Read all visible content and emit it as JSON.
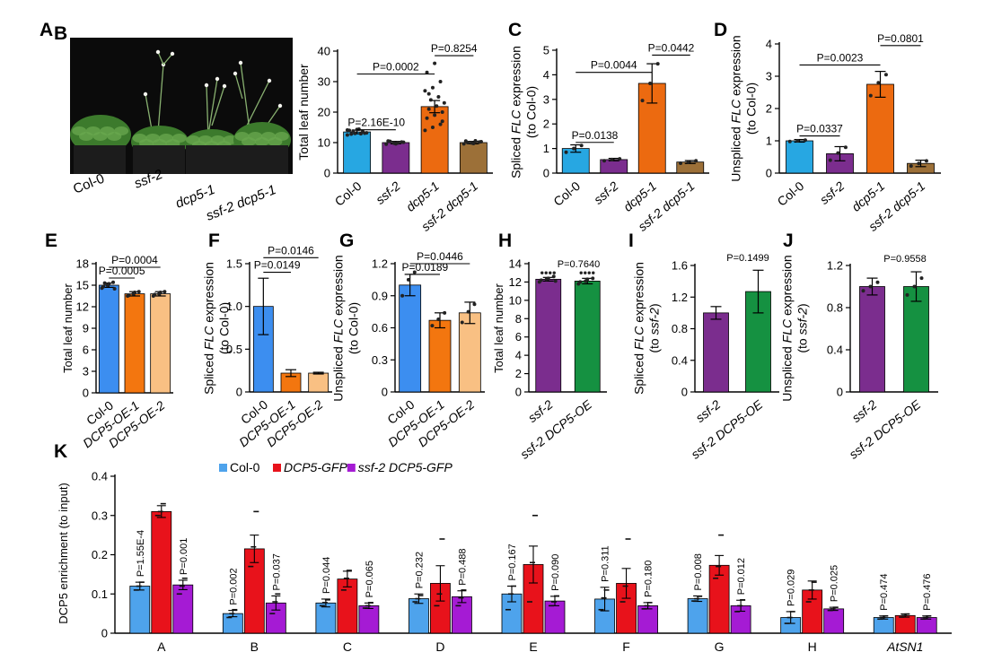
{
  "photo": {
    "letter": "A",
    "labels": [
      "Col-0",
      "ssf-2",
      "dcp5-1",
      "ssf-2 dcp5-1"
    ],
    "colors": {
      "background": "#0a0a0a",
      "leaf": "#3c7a2c",
      "leaf_light": "#6aa84f",
      "pot": "#1c1c1c",
      "stem": "#88b070",
      "flower": "#f4f4ee"
    }
  },
  "chart_data": [
    {
      "id": "B",
      "type": "bar",
      "letter": "B",
      "categories": [
        "Col-0",
        "ssf-2",
        "dcp5-1",
        "ssf-2 dcp5-1"
      ],
      "italic": [
        false,
        true,
        true,
        true
      ],
      "values": [
        13.5,
        10.0,
        21.8,
        10.0
      ],
      "errors": [
        0.6,
        0.4,
        2.0,
        0.4
      ],
      "colors": [
        "#27a7e2",
        "#7b2d8e",
        "#ec6a10",
        "#9c7038"
      ],
      "ylabel": [
        {
          "t": "Total leaf number"
        }
      ],
      "ylim": [
        0,
        40
      ],
      "yticks": [
        0,
        10,
        20,
        30,
        40
      ],
      "ytick_labels": [
        "0",
        "10",
        "20",
        "30",
        "40"
      ],
      "points": [
        [
          12.5,
          13,
          13.6,
          14,
          14.3,
          13.1,
          12.8,
          14.4,
          13.2,
          13.8,
          12.9,
          14.1
        ],
        [
          9.5,
          9.8,
          10.2,
          10.5,
          9.6,
          10.1,
          10.4,
          9.9
        ],
        [
          14,
          15,
          16,
          18,
          19,
          20,
          21,
          22,
          23,
          24,
          25,
          27,
          28,
          30,
          33,
          36,
          17,
          26
        ],
        [
          9.6,
          9.9,
          10.2,
          10.5,
          9.7,
          10.3,
          10.0,
          10.6
        ]
      ],
      "brackets": [
        {
          "from": 0,
          "to": 1,
          "y": 14.2,
          "label": "P=2.16E-10"
        },
        {
          "from": 0,
          "to": 2,
          "y": 32.5,
          "label": "P=0.0002"
        },
        {
          "from": 2,
          "to": 3,
          "y": 38.5,
          "label": "P=0.8254"
        }
      ]
    },
    {
      "id": "C",
      "type": "bar",
      "letter": "C",
      "categories": [
        "Col-0",
        "ssf-2",
        "dcp5-1",
        "ssf-2 dcp5-1"
      ],
      "italic": [
        false,
        true,
        true,
        true
      ],
      "values": [
        1.0,
        0.55,
        3.65,
        0.45
      ],
      "errors": [
        0.15,
        0.05,
        0.8,
        0.06
      ],
      "colors": [
        "#27a7e2",
        "#7b2d8e",
        "#ec6a10",
        "#9c7038"
      ],
      "ylabel": [
        {
          "t": "Spliced "
        },
        {
          "t": "FLC",
          "i": true
        },
        {
          "t": " expression"
        },
        {
          "br": true
        },
        {
          "t": "(to Col-0)"
        }
      ],
      "ylim": [
        0,
        5
      ],
      "yticks": [
        0,
        1,
        2,
        3,
        4,
        5
      ],
      "ytick_labels": [
        "0",
        "1",
        "2",
        "3",
        "4",
        "5"
      ],
      "points": [
        [
          0.85,
          1.0,
          1.12
        ],
        [
          0.5,
          0.55,
          0.58
        ],
        [
          2.95,
          3.65,
          4.45
        ],
        [
          0.4,
          0.45,
          0.5
        ]
      ],
      "brackets": [
        {
          "from": 0,
          "to": 1,
          "y": 1.25,
          "label": "P=0.0138"
        },
        {
          "from": 0,
          "to": 2,
          "y": 4.1,
          "label": "P=0.0044"
        },
        {
          "from": 2,
          "to": 3,
          "y": 4.8,
          "label": "P=0.0442"
        }
      ]
    },
    {
      "id": "D",
      "type": "bar",
      "letter": "D",
      "categories": [
        "Col-0",
        "ssf-2",
        "dcp5-1",
        "ssf-2 dcp5-1"
      ],
      "italic": [
        false,
        true,
        true,
        true
      ],
      "values": [
        1.0,
        0.6,
        2.75,
        0.3
      ],
      "errors": [
        0.04,
        0.22,
        0.4,
        0.1
      ],
      "colors": [
        "#27a7e2",
        "#7b2d8e",
        "#ec6a10",
        "#9c7038"
      ],
      "ylabel": [
        {
          "t": "Unspliced "
        },
        {
          "t": "FLC",
          "i": true
        },
        {
          "t": " expression"
        },
        {
          "br": true
        },
        {
          "t": "(to Col-0)"
        }
      ],
      "ylim": [
        0,
        4
      ],
      "yticks": [
        0,
        1,
        2,
        3,
        4
      ],
      "ytick_labels": [
        "0",
        "1",
        "2",
        "3",
        "4"
      ],
      "points": [
        [
          0.98,
          1.0,
          1.02
        ],
        [
          0.4,
          0.62,
          0.8
        ],
        [
          2.4,
          2.8,
          3.05
        ],
        [
          0.22,
          0.3,
          0.38
        ]
      ],
      "brackets": [
        {
          "from": 0,
          "to": 1,
          "y": 1.15,
          "label": "P=0.0337"
        },
        {
          "from": 0,
          "to": 2,
          "y": 3.35,
          "label": "P=0.0023"
        },
        {
          "from": 2,
          "to": 3,
          "y": 3.95,
          "label": "P=0.0801"
        }
      ]
    },
    {
      "id": "E",
      "type": "bar",
      "letter": "E",
      "categories": [
        "Col-0",
        "DCP5-OE-1",
        "DCP5-OE-2"
      ],
      "italic": [
        false,
        true,
        true
      ],
      "values": [
        15.0,
        13.8,
        13.8
      ],
      "errors": [
        0.3,
        0.3,
        0.3
      ],
      "colors": [
        "#3c8ef0",
        "#f3760f",
        "#f9c083"
      ],
      "ylabel": [
        {
          "t": "Total leaf number"
        }
      ],
      "ylim": [
        0,
        18
      ],
      "yticks": [
        0,
        3,
        6,
        9,
        12,
        15,
        18
      ],
      "ytick_labels": [
        "0",
        "3",
        "6",
        "9",
        "12",
        "15",
        "18"
      ],
      "points": [
        [
          14.6,
          15.0,
          15.4,
          14.8,
          15.2,
          14.5,
          15.3
        ],
        [
          13.5,
          13.8,
          14.1,
          13.6,
          14.0
        ],
        [
          13.5,
          13.8,
          14.1,
          13.7,
          14.0
        ]
      ],
      "brackets": [
        {
          "from": 0,
          "to": 1,
          "y": 16.0,
          "label": "P=0.0005"
        },
        {
          "from": 0,
          "to": 2,
          "y": 17.5,
          "label": "P=0.0004"
        }
      ]
    },
    {
      "id": "F",
      "type": "bar",
      "letter": "F",
      "categories": [
        "Col-0",
        "DCP5-OE-1",
        "DCP5-OE-2"
      ],
      "italic": [
        false,
        true,
        true
      ],
      "values": [
        1.0,
        0.22,
        0.22
      ],
      "errors": [
        0.33,
        0.04,
        0.01
      ],
      "colors": [
        "#3c8ef0",
        "#f3760f",
        "#f9c083"
      ],
      "ylabel": [
        {
          "t": "Spliced "
        },
        {
          "t": "FLC",
          "i": true
        },
        {
          "t": " expression"
        },
        {
          "br": true
        },
        {
          "t": "(to Col-0)"
        }
      ],
      "ylim": [
        0,
        1.5
      ],
      "yticks": [
        0,
        0.5,
        1.0,
        1.5
      ],
      "ytick_labels": [
        "0",
        "0.5",
        "1.0",
        "1.5"
      ],
      "points": [
        [],
        [],
        []
      ],
      "brackets": [
        {
          "from": 0,
          "to": 1,
          "y": 1.4,
          "label": "P=0.0149"
        },
        {
          "from": 0,
          "to": 2,
          "y": 1.57,
          "label": "P=0.0146"
        }
      ]
    },
    {
      "id": "G",
      "type": "bar",
      "letter": "G",
      "categories": [
        "Col-0",
        "DCP5-OE-1",
        "DCP5-OE-2"
      ],
      "italic": [
        false,
        true,
        true
      ],
      "values": [
        1.0,
        0.67,
        0.74
      ],
      "errors": [
        0.1,
        0.07,
        0.1
      ],
      "colors": [
        "#3c8ef0",
        "#f3760f",
        "#f9c083"
      ],
      "ylabel": [
        {
          "t": "Unspliced "
        },
        {
          "t": "FLC",
          "i": true
        },
        {
          "t": " expression"
        },
        {
          "br": true
        },
        {
          "t": "(to Col-0)"
        }
      ],
      "ylim": [
        0,
        1.2
      ],
      "yticks": [
        0,
        0.3,
        0.6,
        0.9,
        1.2
      ],
      "ytick_labels": [
        "0",
        "0.3",
        "0.6",
        "0.9",
        "1.2"
      ],
      "points": [
        [
          0.9,
          1.05,
          1.12
        ],
        [
          0.62,
          0.68,
          0.74
        ],
        [
          0.65,
          0.75,
          0.82
        ]
      ],
      "brackets": [
        {
          "from": 0,
          "to": 1,
          "y": 1.1,
          "label": "P=0.0189"
        },
        {
          "from": 0,
          "to": 2,
          "y": 1.2,
          "label": "P=0.0446"
        }
      ]
    },
    {
      "id": "H",
      "type": "bar",
      "letter": "H",
      "categories": [
        "ssf-2",
        "ssf-2 DCP5-OE"
      ],
      "italic": [
        true,
        true
      ],
      "values": [
        12.3,
        12.1
      ],
      "errors": [
        0.2,
        0.3
      ],
      "colors": [
        "#7b2d8e",
        "#159141"
      ],
      "ylabel": [
        {
          "t": "Total leaf number"
        }
      ],
      "ylim": [
        0,
        14
      ],
      "yticks": [
        0,
        2,
        4,
        6,
        8,
        10,
        12,
        14
      ],
      "ytick_labels": [
        "0",
        "2",
        "4",
        "6",
        "8",
        "10",
        "12",
        "14"
      ],
      "points": [
        [
          12.0,
          12.3,
          12.6,
          12.2,
          12.4,
          12.1
        ],
        [
          11.8,
          12.1,
          12.4,
          12.0,
          12.3
        ]
      ],
      "top_pvalue": {
        "label": "P=0.7640",
        "y": 13.3
      },
      "extra_marks": [
        [
          13.0,
          13.0,
          13.0,
          13.0
        ],
        [
          13.0,
          13.0,
          13.0,
          13.0
        ]
      ]
    },
    {
      "id": "I",
      "type": "bar",
      "letter": "I",
      "categories": [
        "ssf-2",
        "ssf-2 DCP5-OE"
      ],
      "italic": [
        true,
        true
      ],
      "values": [
        1.0,
        1.27
      ],
      "errors": [
        0.08,
        0.27
      ],
      "colors": [
        "#7b2d8e",
        "#159141"
      ],
      "ylabel": [
        {
          "t": "Spliced "
        },
        {
          "t": "FLC",
          "i": true
        },
        {
          "t": " expression"
        },
        {
          "br": true
        },
        {
          "t": "(to "
        },
        {
          "t": "ssf-2",
          "i": true
        },
        {
          "t": ")"
        }
      ],
      "ylim": [
        0,
        1.6
      ],
      "yticks": [
        0,
        0.4,
        0.8,
        1.2,
        1.6
      ],
      "ytick_labels": [
        "0",
        "0.4",
        "0.8",
        "1.2",
        "1.6"
      ],
      "points": [
        [],
        []
      ],
      "top_pvalue": {
        "label": "P=0.1499",
        "y": 1.62
      }
    },
    {
      "id": "J",
      "type": "bar",
      "letter": "J",
      "categories": [
        "ssf-2",
        "ssf-2 DCP5-OE"
      ],
      "italic": [
        true,
        true
      ],
      "values": [
        1.0,
        1.0
      ],
      "errors": [
        0.08,
        0.14
      ],
      "colors": [
        "#7b2d8e",
        "#159141"
      ],
      "ylabel": [
        {
          "t": "Unspliced "
        },
        {
          "t": "FLC",
          "i": true
        },
        {
          "t": " expression"
        },
        {
          "br": true
        },
        {
          "t": "(to "
        },
        {
          "t": "ssf-2",
          "i": true
        },
        {
          "t": ")"
        }
      ],
      "ylim": [
        0,
        1.2
      ],
      "yticks": [
        0,
        0.4,
        0.8,
        1.2
      ],
      "ytick_labels": [
        "0",
        "0.4",
        "0.8",
        "1.2"
      ],
      "points": [
        [
          0.96,
          1.0,
          1.04
        ],
        [
          0.92,
          1.0,
          1.08
        ]
      ],
      "top_pvalue": {
        "label": "P=0.9558",
        "y": 1.21
      }
    },
    {
      "id": "K",
      "type": "bar",
      "letter": "K",
      "categories": [
        "A",
        "B",
        "C",
        "D",
        "E",
        "F",
        "G",
        "H",
        "AtSN1"
      ],
      "italic": [
        false,
        false,
        false,
        false,
        false,
        false,
        false,
        false,
        true
      ],
      "series": [
        {
          "name": "Col-0",
          "italic": false,
          "color": "#4ea3ec",
          "values": [
            0.12,
            0.05,
            0.077,
            0.088,
            0.1,
            0.087,
            0.088,
            0.04,
            0.04
          ],
          "errors": [
            0.01,
            0.008,
            0.01,
            0.012,
            0.02,
            0.03,
            0.007,
            0.015,
            0.004
          ],
          "points": [
            [
              0.11,
              0.12,
              0.13
            ],
            [
              0.04,
              0.05,
              0.06
            ],
            [
              0.07,
              0.078,
              0.085
            ],
            [
              0.08,
              0.088,
              0.096
            ],
            [
              0.06,
              0.1,
              0.12
            ],
            [
              0.06,
              0.09,
              0.11
            ],
            [
              0.082,
              0.088,
              0.094
            ],
            [
              0.025,
              0.04,
              0.055
            ],
            [
              0.036,
              0.04,
              0.044
            ]
          ]
        },
        {
          "name": "DCP5-GFP",
          "italic": true,
          "color": "#e8121b",
          "values": [
            0.31,
            0.215,
            0.138,
            0.127,
            0.175,
            0.127,
            0.173,
            0.11,
            0.045
          ],
          "errors": [
            0.015,
            0.035,
            0.02,
            0.045,
            0.047,
            0.038,
            0.025,
            0.023,
            0.004
          ],
          "points": [
            [
              0.3,
              0.31,
              0.33
            ],
            [
              0.17,
              0.22,
              0.31
            ],
            [
              0.11,
              0.14,
              0.16
            ],
            [
              0.07,
              0.1,
              0.24
            ],
            [
              0.08,
              0.18,
              0.3
            ],
            [
              0.08,
              0.12,
              0.24
            ],
            [
              0.14,
              0.17,
              0.25
            ],
            [
              0.08,
              0.11,
              0.13
            ],
            [
              0.041,
              0.045,
              0.049
            ]
          ]
        },
        {
          "name": "ssf-2 DCP5-GFP",
          "italic": true,
          "color": "#a51bd4",
          "values": [
            0.123,
            0.077,
            0.07,
            0.093,
            0.082,
            0.07,
            0.07,
            0.062,
            0.04
          ],
          "errors": [
            0.012,
            0.018,
            0.007,
            0.015,
            0.012,
            0.008,
            0.014,
            0.004,
            0.004
          ],
          "points": [
            [
              0.1,
              0.12,
              0.14
            ],
            [
              0.05,
              0.08,
              0.1
            ],
            [
              0.064,
              0.07,
              0.078
            ],
            [
              0.07,
              0.09,
              0.11
            ],
            [
              0.07,
              0.08,
              0.095
            ],
            [
              0.062,
              0.07,
              0.078
            ],
            [
              0.055,
              0.07,
              0.085
            ],
            [
              0.058,
              0.062,
              0.066
            ],
            [
              0.036,
              0.04,
              0.044
            ]
          ]
        }
      ],
      "pvalues": [
        [
          "P=1.55E-4",
          "P=0.001"
        ],
        [
          "P=0.002",
          "P=0.037"
        ],
        [
          "P=0.044",
          "P=0.065"
        ],
        [
          "P=0.232",
          "P=0.488"
        ],
        [
          "P=0.167",
          "P=0.090"
        ],
        [
          "P=0.311",
          "P=0.180"
        ],
        [
          "P=0.008",
          "P=0.012"
        ],
        [
          "P=0.029",
          "P=0.025"
        ],
        [
          "P=0.474",
          "P=0.476"
        ]
      ],
      "ylabel": [
        {
          "t": "DCP5 enrichment (to input)"
        }
      ],
      "ylim": [
        0,
        0.4
      ],
      "yticks": [
        0,
        0.1,
        0.2,
        0.3,
        0.4
      ],
      "ytick_labels": [
        "0",
        "0.1",
        "0.2",
        "0.3",
        "0.4"
      ],
      "legend": "top-center"
    }
  ]
}
